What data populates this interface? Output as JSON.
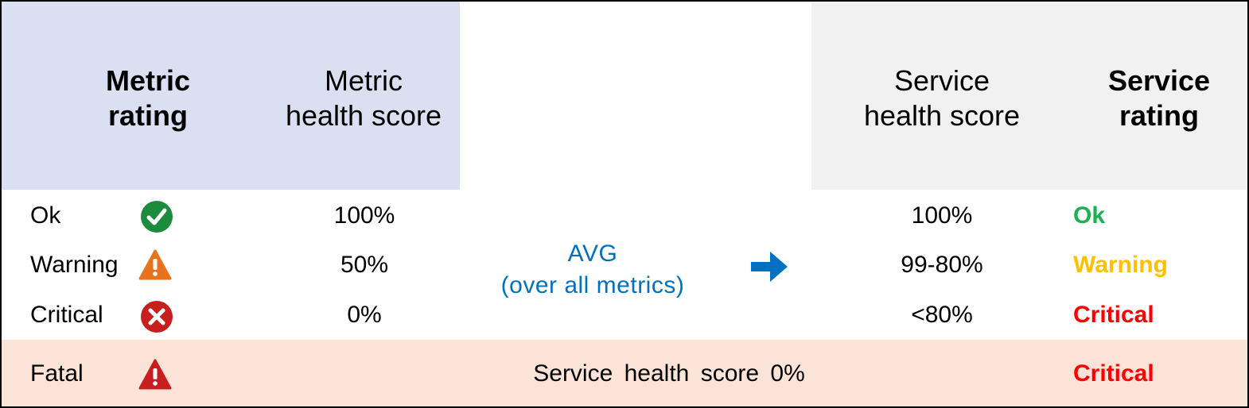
{
  "headers": {
    "metric_rating": [
      "Metric",
      "rating"
    ],
    "metric_health_score": [
      "Metric",
      "health score"
    ],
    "service_health_score": [
      "Service",
      "health score"
    ],
    "service_rating": [
      "Service",
      "rating"
    ]
  },
  "rows": [
    {
      "metric_rating": "Ok",
      "icon": "check-circle-icon",
      "metric_score": "100%",
      "service_score": "100%",
      "service_rating": "Ok",
      "rating_color": "#1db050"
    },
    {
      "metric_rating": "Warning",
      "icon": "warning-triangle-icon",
      "metric_score": "50%",
      "service_score": "99-80%",
      "service_rating": "Warning",
      "rating_color": "#ffc000"
    },
    {
      "metric_rating": "Critical",
      "icon": "x-circle-icon",
      "metric_score": "0%",
      "service_score": "<80%",
      "service_rating": "Critical",
      "rating_color": "#ff0000"
    }
  ],
  "avg": {
    "line1": "AVG",
    "line2": "(over all metrics)",
    "color": "#0070c0"
  },
  "fatal": {
    "metric_rating": "Fatal",
    "icon": "alert-triangle-icon",
    "text": "Service health score 0%",
    "service_rating": "Critical",
    "rating_color": "#ff0000"
  },
  "colors": {
    "metric_band": "#dae0f1",
    "service_band": "#f1f1f1",
    "fatal_band": "#fbe3d8",
    "ok_icon": "#1a8c3c",
    "warning_icon": "#e8731c",
    "critical_icon": "#c81e1e",
    "arrow": "#0070c0"
  }
}
